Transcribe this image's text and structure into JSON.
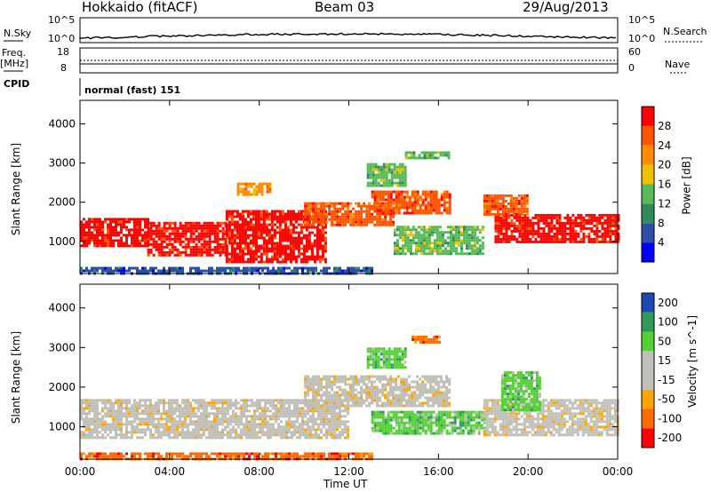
{
  "header": {
    "station": "Hokkaido (fitACF)",
    "beam": "Beam 03",
    "date": "29/Aug/2013"
  },
  "strip_sky": {
    "left_label": "N.Sky",
    "right_label": "N.Search",
    "left_ticks": [
      "10^5",
      "10^0"
    ],
    "right_ticks": [
      "10^5",
      "10^0"
    ]
  },
  "strip_freq": {
    "left_label_1": "Freq.",
    "left_label_2": "[MHz]",
    "right_label": "Nave",
    "left_ticks": [
      "18",
      "8"
    ],
    "right_ticks": [
      "60",
      "0"
    ]
  },
  "cpid": {
    "label": "CPID",
    "value": "normal (fast) 151"
  },
  "colors": {
    "power_scale": [
      "#0000ff",
      "#2d4fa8",
      "#2d8c5a",
      "#57b957",
      "#f0c000",
      "#ff8c00",
      "#ff5500",
      "#ff0000"
    ],
    "velocity_scale": [
      "#ff0000",
      "#ff6a00",
      "#ffa500",
      "#c0c0b8",
      "#c0c0b8",
      "#55d035",
      "#2f9a5a",
      "#1e48b4"
    ]
  },
  "chart_data": [
    {
      "type": "heatmap",
      "name": "power",
      "ylabel": "Slant Range [km]",
      "x_ticks": [
        "00:00",
        "04:00",
        "08:00",
        "12:00",
        "16:00",
        "20:00",
        "00:00"
      ],
      "y_ticks": [
        1000,
        2000,
        3000,
        4000
      ],
      "ylim": [
        180,
        4600
      ],
      "xlim_hours": [
        0,
        24
      ],
      "colorbar_label": "Power [dB]",
      "colorbar_ticks": [
        4,
        8,
        12,
        16,
        20,
        24,
        28
      ],
      "regions": [
        {
          "t0": 0.0,
          "t1": 3.0,
          "r0": 900,
          "r1": 1600,
          "level": 7
        },
        {
          "t0": 3.0,
          "t1": 6.5,
          "r0": 650,
          "r1": 1500,
          "level": 7
        },
        {
          "t0": 6.5,
          "t1": 11.0,
          "r0": 500,
          "r1": 1800,
          "level": 7
        },
        {
          "t0": 10.0,
          "t1": 14.0,
          "r0": 1400,
          "r1": 2000,
          "level": 6
        },
        {
          "t0": 13.0,
          "t1": 16.5,
          "r0": 1700,
          "r1": 2300,
          "level": 6
        },
        {
          "t0": 14.0,
          "t1": 18.0,
          "r0": 700,
          "r1": 1400,
          "level": 3
        },
        {
          "t0": 18.5,
          "t1": 24.0,
          "r0": 1000,
          "r1": 1700,
          "level": 7
        },
        {
          "t0": 18.0,
          "t1": 20.0,
          "r0": 1700,
          "r1": 2200,
          "level": 6
        },
        {
          "t0": 14.5,
          "t1": 16.5,
          "r0": 3150,
          "r1": 3300,
          "level": 3
        },
        {
          "t0": 12.8,
          "t1": 14.5,
          "r0": 2400,
          "r1": 3000,
          "level": 3
        },
        {
          "t0": 7.0,
          "t1": 8.5,
          "r0": 2200,
          "r1": 2500,
          "level": 5
        },
        {
          "t0": 0.0,
          "t1": 13.0,
          "r0": 200,
          "r1": 350,
          "level": 1
        }
      ]
    },
    {
      "type": "heatmap",
      "name": "velocity",
      "ylabel": "Slant Range [km]",
      "xlabel": "Time UT",
      "x_ticks": [
        "00:00",
        "04:00",
        "08:00",
        "12:00",
        "16:00",
        "20:00",
        "00:00"
      ],
      "y_ticks": [
        1000,
        2000,
        3000,
        4000
      ],
      "ylim": [
        180,
        4600
      ],
      "xlim_hours": [
        0,
        24
      ],
      "colorbar_label": "Velocity [m s^-1]",
      "colorbar_ticks": [
        -200,
        -100,
        -50,
        -15,
        15,
        50,
        100,
        200
      ],
      "regions": [
        {
          "t0": 0.0,
          "t1": 12.0,
          "r0": 700,
          "r1": 1700,
          "level": 3
        },
        {
          "t0": 10.0,
          "t1": 16.5,
          "r0": 1500,
          "r1": 2300,
          "level": 3
        },
        {
          "t0": 13.0,
          "t1": 18.0,
          "r0": 800,
          "r1": 1400,
          "level": 5
        },
        {
          "t0": 18.0,
          "t1": 24.0,
          "r0": 800,
          "r1": 1700,
          "level": 3
        },
        {
          "t0": 18.8,
          "t1": 20.5,
          "r0": 1400,
          "r1": 2400,
          "level": 5
        },
        {
          "t0": 14.8,
          "t1": 16.0,
          "r0": 3150,
          "r1": 3300,
          "level": 1
        },
        {
          "t0": 12.8,
          "t1": 14.5,
          "r0": 2500,
          "r1": 3000,
          "level": 5
        },
        {
          "t0": 0.0,
          "t1": 13.0,
          "r0": 200,
          "r1": 350,
          "level": 1
        }
      ]
    }
  ]
}
